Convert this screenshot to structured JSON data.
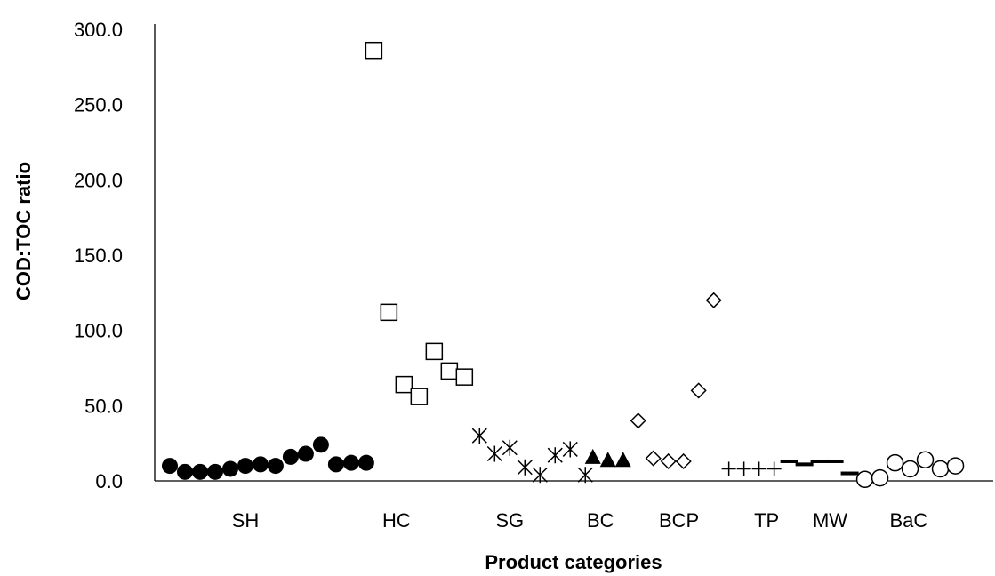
{
  "chart_data": {
    "type": "scatter",
    "title": "",
    "xlabel": "Product categories",
    "ylabel": "COD:TOC ratio",
    "ylim": [
      0,
      300
    ],
    "yticks": [
      "0.0",
      "50.0",
      "100.0",
      "150.0",
      "200.0",
      "250.0",
      "300.0"
    ],
    "x_range": [
      0,
      55.5
    ],
    "categories": [
      {
        "label": "SH",
        "x": 6
      },
      {
        "label": "HC",
        "x": 16
      },
      {
        "label": "SG",
        "x": 23.5
      },
      {
        "label": "BC",
        "x": 29.5
      },
      {
        "label": "BCP",
        "x": 34.7
      },
      {
        "label": "TP",
        "x": 40.5
      },
      {
        "label": "MW",
        "x": 44.7
      },
      {
        "label": "BaC",
        "x": 49.9
      }
    ],
    "series": [
      {
        "category": "SH",
        "marker": "filled-circle",
        "x": [
          1,
          2,
          3,
          4,
          5,
          6,
          7,
          8,
          9,
          10,
          11,
          12,
          13,
          14
        ],
        "y": [
          10,
          6,
          6,
          6,
          8,
          10,
          11,
          10,
          16,
          18,
          24,
          11,
          12,
          12
        ]
      },
      {
        "category": "HC",
        "marker": "open-square",
        "x": [
          14.5,
          15.5,
          16.5,
          17.5,
          18.5,
          19.5,
          20.5
        ],
        "y": [
          286,
          112,
          64,
          56,
          86,
          73,
          69
        ]
      },
      {
        "category": "SG",
        "marker": "asterisk",
        "x": [
          21.5,
          22.5,
          23.5,
          24.5,
          25.5,
          26.5,
          27.5,
          28.5
        ],
        "y": [
          30,
          18,
          22,
          9,
          4,
          17,
          21,
          4
        ]
      },
      {
        "category": "BC",
        "marker": "filled-triangle",
        "x": [
          29,
          30,
          31
        ],
        "y": [
          16,
          14,
          14
        ]
      },
      {
        "category": "BCP",
        "marker": "open-diamond",
        "x": [
          32,
          33,
          34,
          35,
          36,
          37
        ],
        "y": [
          40,
          15,
          13,
          13,
          60,
          120
        ]
      },
      {
        "category": "TP",
        "marker": "plus",
        "x": [
          38,
          39,
          40,
          41
        ],
        "y": [
          8,
          8,
          8,
          8
        ]
      },
      {
        "category": "MW",
        "marker": "dash",
        "x": [
          42,
          43,
          44,
          45,
          46
        ],
        "y": [
          13,
          11,
          13,
          13,
          5
        ]
      },
      {
        "category": "BaC",
        "marker": "open-circle",
        "x": [
          47,
          48,
          49,
          50,
          51,
          52,
          53
        ],
        "y": [
          1,
          2,
          12,
          8,
          14,
          8,
          10
        ]
      }
    ],
    "grid": false,
    "legend": "none"
  }
}
